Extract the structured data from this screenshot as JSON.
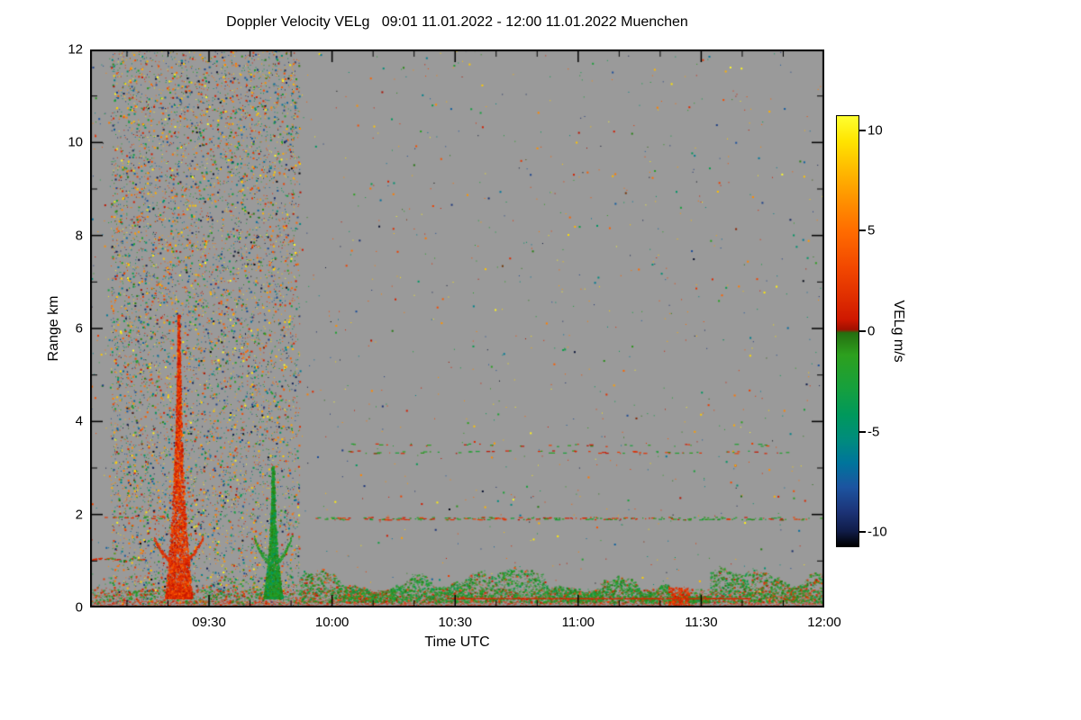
{
  "chart_data": {
    "type": "heatmap",
    "title": "Doppler Velocity VELg   09:01 11.01.2022 - 12:00 11.01.2022 Muenchen",
    "xlabel": "Time UTC",
    "ylabel": "Range km",
    "x_range_minutes": [
      541,
      720
    ],
    "x_ticks": [
      {
        "minute": 570,
        "label": "09:30"
      },
      {
        "minute": 600,
        "label": "10:00"
      },
      {
        "minute": 630,
        "label": "10:30"
      },
      {
        "minute": 660,
        "label": "11:00"
      },
      {
        "minute": 690,
        "label": "11:30"
      },
      {
        "minute": 720,
        "label": "12:00"
      }
    ],
    "x_minor_step_min": 10,
    "ylim": [
      0,
      12
    ],
    "y_ticks": [
      0,
      2,
      4,
      6,
      8,
      10,
      12
    ],
    "background_color": "#9a9a9a",
    "grid": false,
    "legend_position": "none",
    "colorbar": {
      "label": "VELg m/s",
      "vmin": -10.75,
      "vmax": 10.75,
      "ticks": [
        10,
        5,
        0,
        -5,
        -10
      ],
      "stops": [
        {
          "v": 10.75,
          "color": "#ffff30"
        },
        {
          "v": 9.5,
          "color": "#ffe400"
        },
        {
          "v": 8.0,
          "color": "#ffb800"
        },
        {
          "v": 6.5,
          "color": "#ff9000"
        },
        {
          "v": 5.0,
          "color": "#ff6c00"
        },
        {
          "v": 3.2,
          "color": "#f24800"
        },
        {
          "v": 1.8,
          "color": "#e13000"
        },
        {
          "v": 0.6,
          "color": "#cf1800"
        },
        {
          "v": 0.08,
          "color": "#a01000"
        },
        {
          "v": -0.08,
          "color": "#256e10"
        },
        {
          "v": -1.2,
          "color": "#2da01e"
        },
        {
          "v": -2.8,
          "color": "#17a03c"
        },
        {
          "v": -4.2,
          "color": "#00985c"
        },
        {
          "v": -5.4,
          "color": "#008c7c"
        },
        {
          "v": -6.6,
          "color": "#00749c"
        },
        {
          "v": -7.8,
          "color": "#1c54a0"
        },
        {
          "v": -9.0,
          "color": "#1c3478"
        },
        {
          "v": -10.0,
          "color": "#101c48"
        },
        {
          "v": -10.75,
          "color": "#000000"
        }
      ]
    },
    "seed": 1337,
    "features": {
      "dense_noise": {
        "t0": 546,
        "t1": 592,
        "km0": 0,
        "km1": 12,
        "density": 0.065
      },
      "sparse_noise": {
        "t0": 592,
        "t1": 720,
        "km0": 0,
        "km1": 12,
        "density": 0.0028
      },
      "edge_noise": {
        "t0": 541,
        "t1": 546,
        "km0": 0,
        "km1": 12,
        "density": 0.006
      },
      "plumes": [
        {
          "label": "updraft plume ~09:22",
          "center_min": 562.5,
          "top_km": 6.3,
          "base_width_min": 3.2,
          "polarity": "positive"
        },
        {
          "label": "downdraft plume ~09:45",
          "center_min": 585.5,
          "top_km": 3.05,
          "base_width_min": 2.3,
          "polarity": "negative"
        }
      ],
      "boundary_layer_band": {
        "t0": 592,
        "t1": 720,
        "base_km": 0.12,
        "typical_top_km": 1.0,
        "gap_t0": 682,
        "gap_t1": 692
      },
      "surface_band": {
        "km0": 0.0,
        "km1": 0.4
      },
      "streaks": [
        {
          "km": 1.92,
          "t0": 596,
          "t1": 720,
          "density": 0.35
        },
        {
          "km": 3.35,
          "t0": 600,
          "t1": 714,
          "density": 0.13
        },
        {
          "km": 3.5,
          "t0": 602,
          "t1": 706,
          "density": 0.08
        },
        {
          "km": 1.05,
          "t0": 541,
          "t1": 554,
          "density": 0.5
        },
        {
          "km": 1.95,
          "t0": 541,
          "t1": 562,
          "density": 0.22
        }
      ],
      "red_line": {
        "km": 0.2,
        "t0": 628,
        "t1": 702
      },
      "red_patch": {
        "t0": 682,
        "t1": 687,
        "km0": 0.0,
        "km1": 0.45
      }
    }
  }
}
